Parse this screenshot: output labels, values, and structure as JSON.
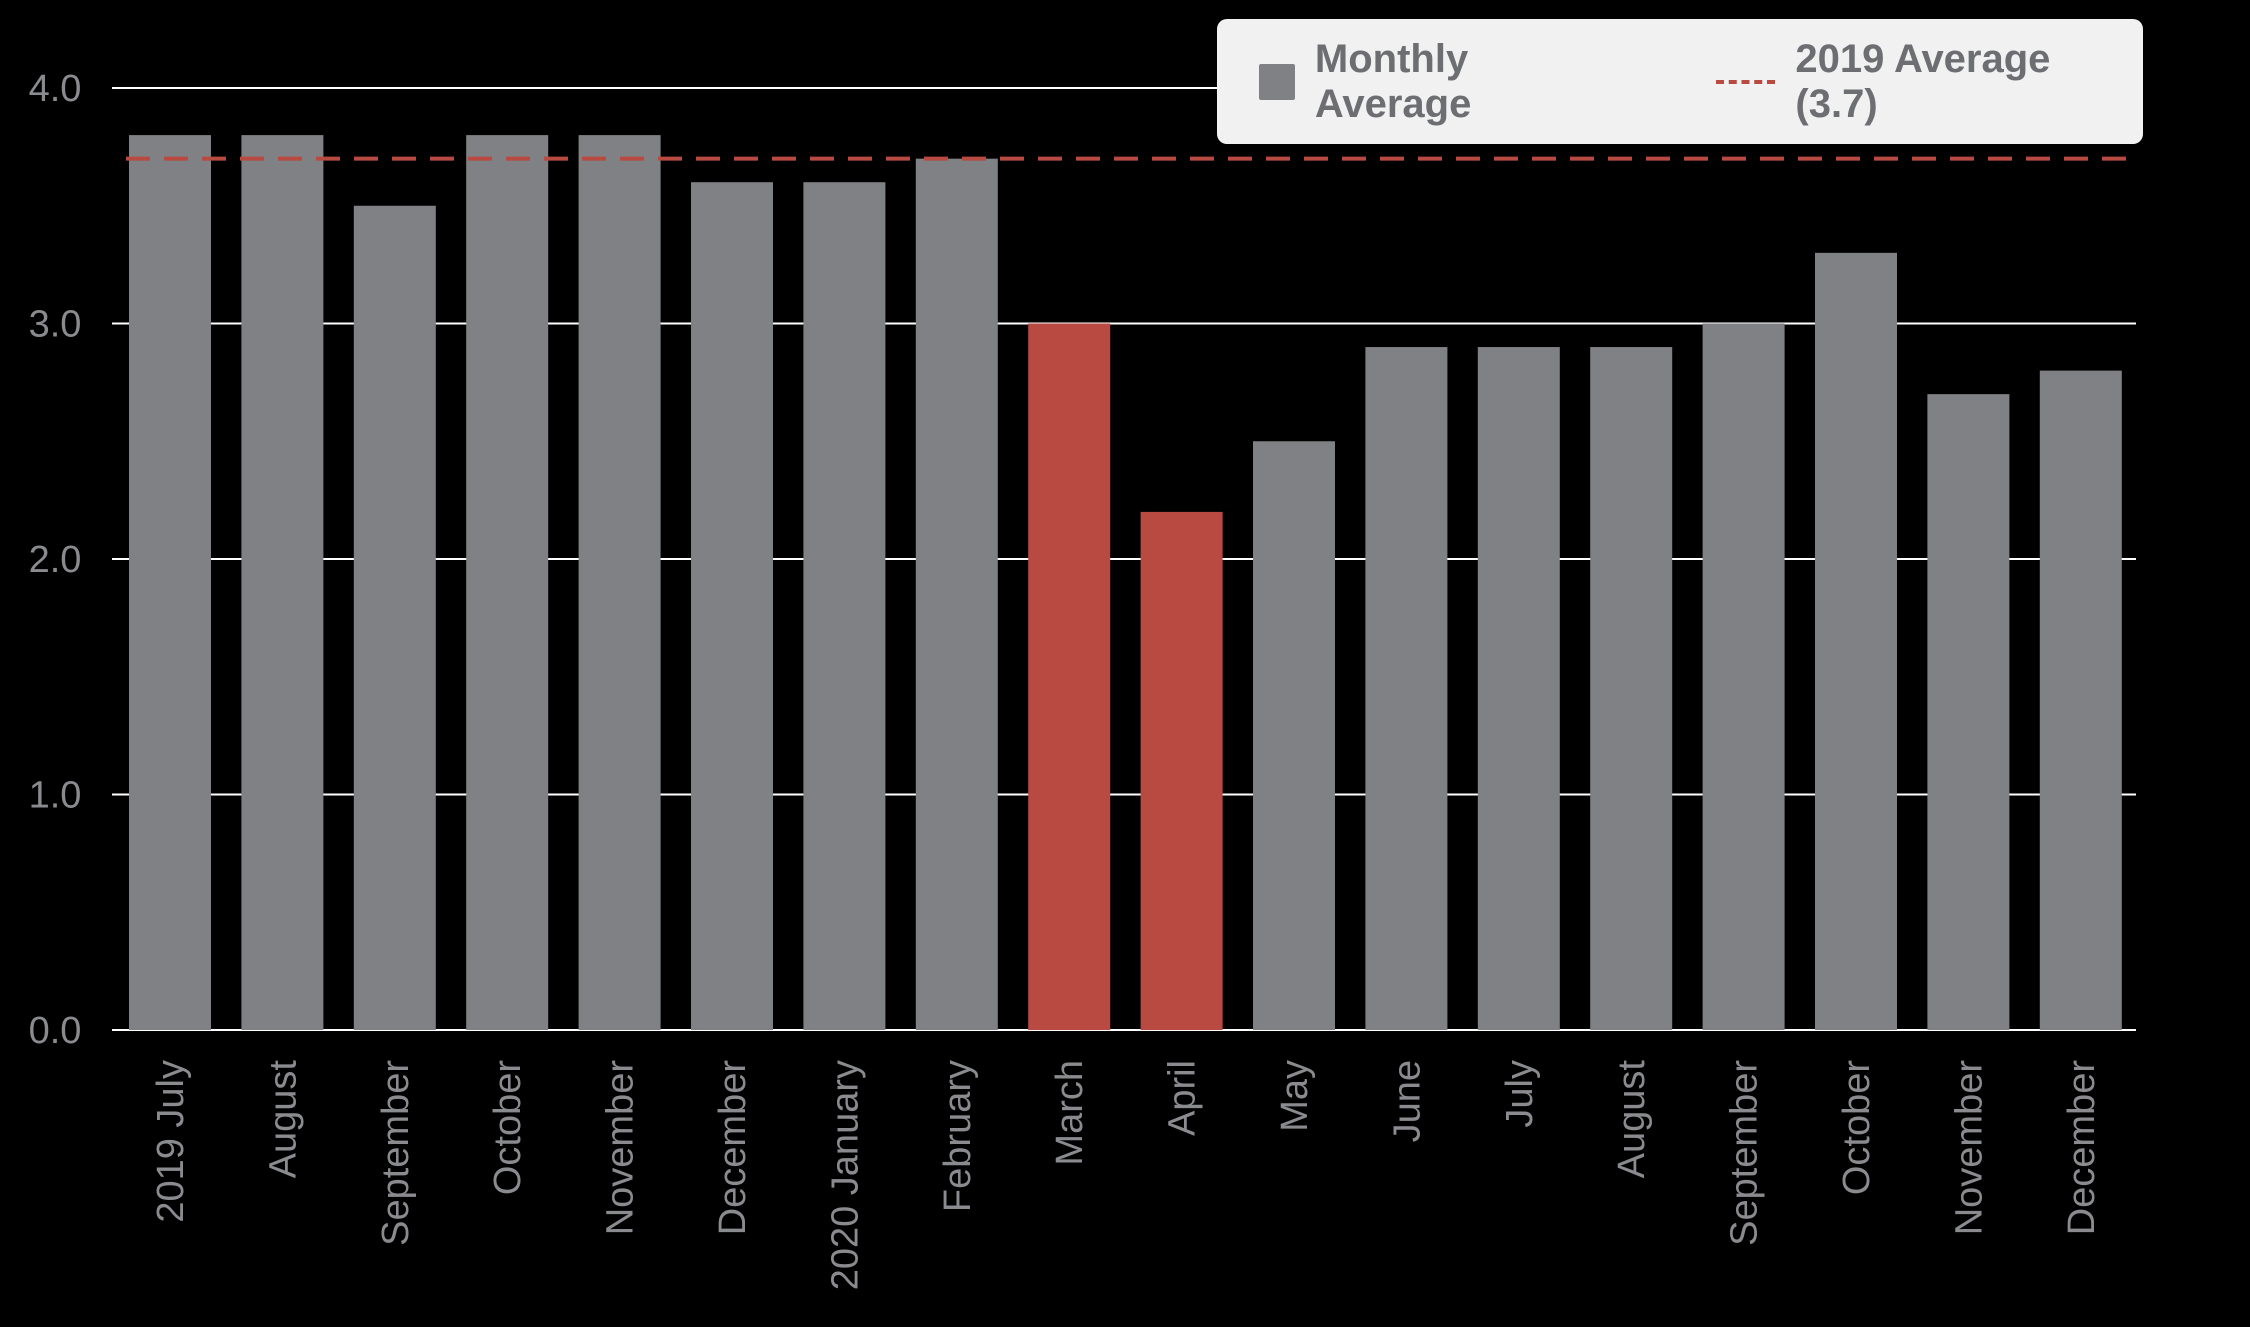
{
  "colors": {
    "background": "#000000",
    "bar_default": "#808184",
    "bar_highlight": "#b94a42",
    "reference_line": "#b94a42",
    "gridline": "#ffffff",
    "tick_text": "#8a8b8f",
    "legend_bg": "#f1f1f2",
    "legend_text": "#6d6e71"
  },
  "legend": {
    "series_label": "Monthly Average",
    "reference_label": "2019 Average (3.7)"
  },
  "chart_data": {
    "type": "bar",
    "categories": [
      "2019 July",
      "August",
      "September",
      "October",
      "November",
      "December",
      "2020 January",
      "February",
      "March",
      "April",
      "May",
      "June",
      "July",
      "August",
      "September",
      "October",
      "November",
      "December"
    ],
    "series": [
      {
        "name": "Monthly Average",
        "values": [
          3.8,
          3.8,
          3.5,
          3.8,
          3.8,
          3.6,
          3.6,
          3.7,
          3.0,
          2.2,
          2.5,
          2.9,
          2.9,
          2.9,
          3.0,
          3.3,
          2.7,
          2.8
        ]
      }
    ],
    "highlighted_categories": [
      8,
      9
    ],
    "reference_line": {
      "label": "2019 Average (3.7)",
      "value": 3.7,
      "style": "dashed"
    },
    "y_ticks": [
      "0.0",
      "1.0",
      "2.0",
      "3.0",
      "4.0"
    ],
    "y_tick_values": [
      0,
      1,
      2,
      3,
      4
    ],
    "ylim": [
      0,
      4.1
    ],
    "grid": true,
    "legend_position": "top-right",
    "title": "",
    "xlabel": "",
    "ylabel": ""
  }
}
